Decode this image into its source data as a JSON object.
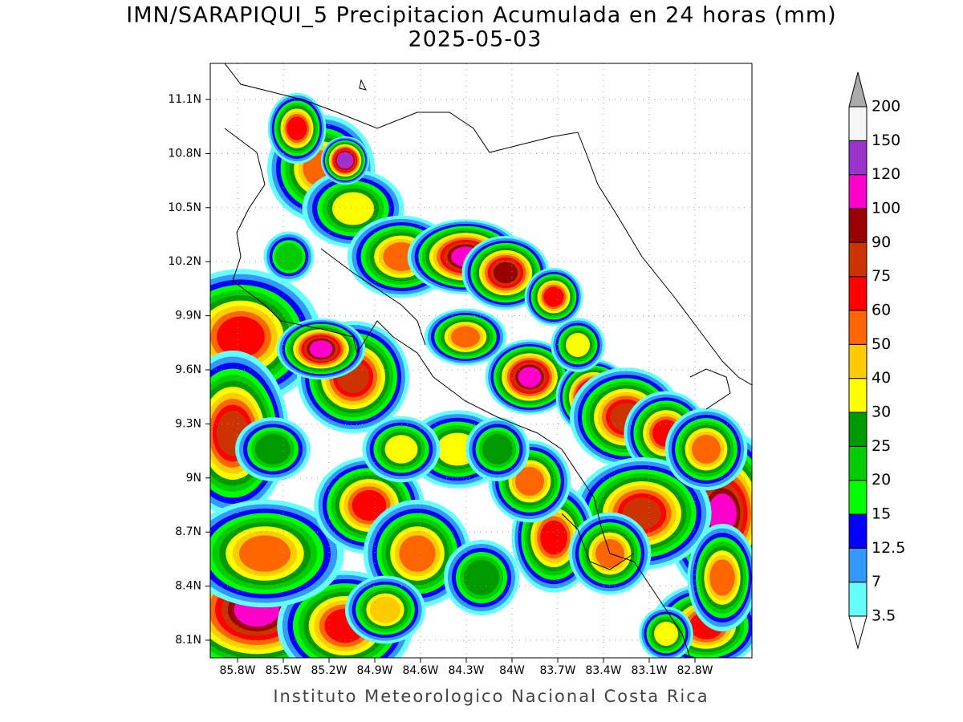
{
  "header": {
    "title": "IMN/SARAPIQUI_5 Precipitacion Acumulada en 24 horas (mm)",
    "subtitle": "2025-05-03"
  },
  "map": {
    "lat_labels": [
      "11.1N",
      "10.8N",
      "10.5N",
      "10.2N",
      "9.9N",
      "9.6N",
      "9.3N",
      "9N",
      "8.7N",
      "8.4N",
      "8.1N"
    ],
    "lon_labels": [
      "85.8W",
      "85.5W",
      "85.2W",
      "84.9W",
      "84.6W",
      "84.3W",
      "84W",
      "83.7W",
      "83.4W",
      "83.1W",
      "82.8W"
    ]
  },
  "legend": {
    "below_color": "#ffffff",
    "above_color": "#aaaaaa",
    "levels": [
      {
        "label": "3.5",
        "color": "#66ffff"
      },
      {
        "label": "7",
        "color": "#3399ff"
      },
      {
        "label": "12.5",
        "color": "#0000ff"
      },
      {
        "label": "15",
        "color": "#00ff00"
      },
      {
        "label": "20",
        "color": "#00cc00"
      },
      {
        "label": "25",
        "color": "#009900"
      },
      {
        "label": "30",
        "color": "#ffff00"
      },
      {
        "label": "40",
        "color": "#ffcc00"
      },
      {
        "label": "50",
        "color": "#ff6600"
      },
      {
        "label": "60",
        "color": "#ff0000"
      },
      {
        "label": "75",
        "color": "#cc3300"
      },
      {
        "label": "90",
        "color": "#990000"
      },
      {
        "label": "100",
        "color": "#ff00cc"
      },
      {
        "label": "120",
        "color": "#9933cc"
      },
      {
        "label": "150",
        "color": "#f5f5f5"
      },
      {
        "label": "200",
        "color": null
      }
    ]
  },
  "footer": "Instituto Meteorologico Nacional Costa Rica"
}
